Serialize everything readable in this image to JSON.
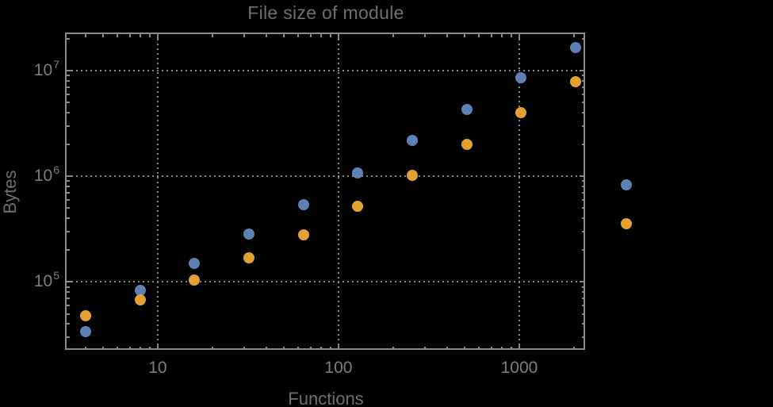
{
  "title": "File size of module",
  "x_axis_label": "Functions",
  "y_axis_label": "Bytes",
  "colors": {
    "background": "#000000",
    "frame": "#8a8a8a",
    "grid": "#848484",
    "tick_label": "#7d7d7d",
    "title_label": "#6e6e6e",
    "axis_label": "#6e6e6e",
    "series_blue": "#5e81b5",
    "series_orange": "#e4a133"
  },
  "chart_data": {
    "type": "scatter",
    "title": "File size of module",
    "xlabel": "Functions",
    "ylabel": "Bytes",
    "x_scale": "log",
    "y_scale": "log",
    "grid": "dotted",
    "legend": "none",
    "xlim": [
      3.07,
      2360
    ],
    "ylim": [
      22000,
      23000000
    ],
    "x_ticks": [
      10,
      100,
      1000
    ],
    "x_tick_labels": [
      "10",
      "100",
      "1000"
    ],
    "y_ticks": [
      100000,
      1000000,
      10000000
    ],
    "y_tick_labels": [
      "10^5",
      "10^6",
      "10^7"
    ],
    "x": [
      4,
      8,
      16,
      32,
      64,
      128,
      256,
      512,
      1024,
      2048,
      3900
    ],
    "series": [
      {
        "name": "series-blue",
        "color_key": "series_blue",
        "values": [
          34000,
          84000,
          150000,
          283000,
          536000,
          1070000,
          2180000,
          4280000,
          8560000,
          16500000,
          826000
        ]
      },
      {
        "name": "series-orange",
        "color_key": "series_orange",
        "values": [
          48000,
          68000,
          104000,
          168000,
          278000,
          518000,
          1020000,
          2000000,
          4000000,
          7850000,
          354000
        ]
      }
    ],
    "note_points_outside_frame": "last x pair (x=3900) is drawn outside the right frame edge"
  }
}
